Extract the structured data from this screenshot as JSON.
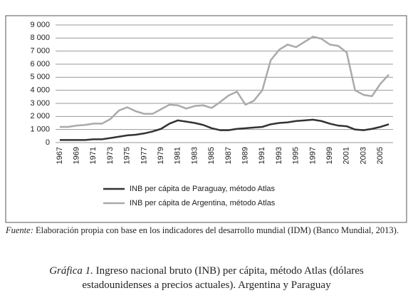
{
  "chart_data": {
    "type": "line",
    "categories": [
      "1967",
      null,
      "1969",
      null,
      "1971",
      null,
      "1973",
      null,
      "1975",
      null,
      "1977",
      null,
      "1979",
      null,
      "1981",
      null,
      "1983",
      null,
      "1985",
      null,
      "1987",
      null,
      "1989",
      null,
      "1991",
      null,
      "1993",
      null,
      "1995",
      null,
      "1997",
      null,
      "1999",
      null,
      "2001",
      null,
      "2003",
      null,
      "2005",
      null
    ],
    "series": [
      {
        "name": "INB per cápita de Paraguay, método Atlas",
        "color": "#333333",
        "values": [
          200,
          200,
          200,
          200,
          250,
          250,
          350,
          450,
          550,
          600,
          700,
          850,
          1050,
          1450,
          1700,
          1600,
          1500,
          1350,
          1100,
          950,
          950,
          1050,
          1100,
          1150,
          1200,
          1400,
          1500,
          1550,
          1650,
          1700,
          1750,
          1650,
          1450,
          1300,
          1250,
          1000,
          950,
          1050,
          1200,
          1400
        ]
      },
      {
        "name": "INB per cápita de Argentina, método Atlas",
        "color": "#aaaaaa",
        "values": [
          1200,
          1200,
          1300,
          1350,
          1450,
          1450,
          1800,
          2450,
          2700,
          2400,
          2200,
          2200,
          2550,
          2900,
          2850,
          2600,
          2800,
          2850,
          2650,
          3100,
          3600,
          3900,
          2900,
          3200,
          4000,
          6300,
          7100,
          7500,
          7300,
          7700,
          8100,
          7950,
          7500,
          7400,
          6900,
          4000,
          3650,
          3550,
          4500,
          5200
        ]
      }
    ],
    "ylim": [
      0,
      9000
    ],
    "yticks": [
      0,
      {
        "value": 1000,
        "label": "1 000"
      },
      {
        "value": 2000,
        "label": "2 000"
      },
      {
        "value": 3000,
        "label": "3 000"
      },
      {
        "value": 4000,
        "label": "4 000"
      },
      {
        "value": 5000,
        "label": "5 000"
      },
      {
        "value": 6000,
        "label": "6 000"
      },
      {
        "value": 7000,
        "label": "7 000"
      },
      {
        "value": 8000,
        "label": "8 000"
      },
      {
        "value": 9000,
        "label": "9 000"
      }
    ],
    "grid": true,
    "legend": "bottom"
  },
  "source": {
    "label": "Fuente:",
    "text": "Elaboración propia con base en los indicadores del desarrollo mundial (IDM) (Banco Mundial, 2013)."
  },
  "caption": {
    "label": "Gráfica 1.",
    "text": "Ingreso nacional bruto (INB) per cápita, método Atlas (dólares estadounidenses a precios actuales). Argentina y Paraguay"
  }
}
